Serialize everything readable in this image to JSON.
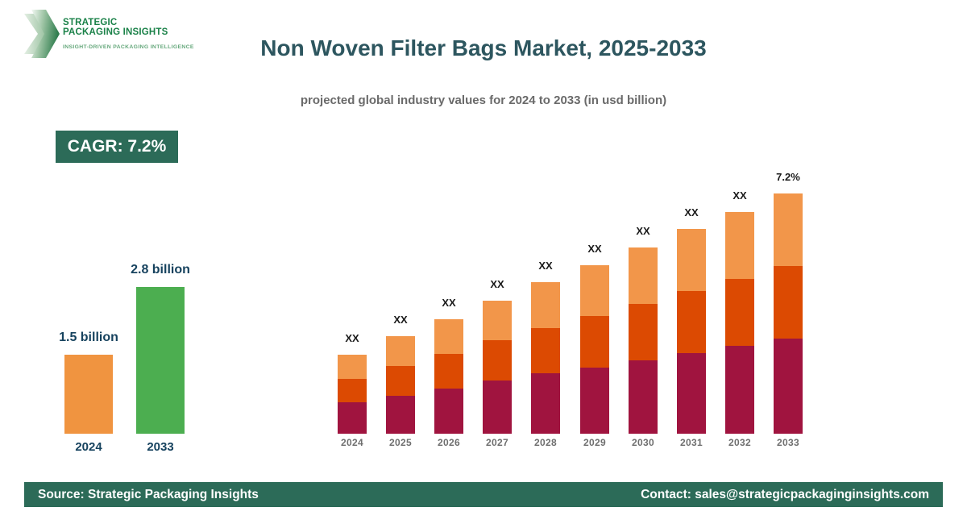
{
  "logo": {
    "line1": "STRATEGIC",
    "line2": "PACKAGING INSIGHTS",
    "tagline": "INSIGHT-DRIVEN PACKAGING INTELLIGENCE"
  },
  "header": {
    "title": "Non Woven Filter Bags Market, 2025-2033",
    "subtitle": "projected global industry values for 2024 to 2033 (in usd billion)"
  },
  "cagr_badge": {
    "label": "CAGR: 7.2%"
  },
  "footer": {
    "source": "Source: Strategic Packaging Insights",
    "contact": "Contact: sales@strategicpackaginginsights.com"
  },
  "colors": {
    "brand_green": "#2C6B58",
    "title_teal": "#2D565F",
    "logo_green": "#1A8148",
    "logo_tagline_green": "#66A87C",
    "mini_label_navy": "#16425E",
    "main_year_gray": "#6E6E6E"
  },
  "chart_data": [
    {
      "type": "bar",
      "title": "",
      "categories": [
        "2024",
        "2033"
      ],
      "values": [
        1.5,
        2.8
      ],
      "value_labels": [
        "1.5 billion",
        "2.8 billion"
      ],
      "unit": "usd billion",
      "bar_colors": [
        "#F09440",
        "#4CAE50"
      ],
      "grid": false,
      "legend": false
    },
    {
      "type": "bar",
      "stacked": true,
      "title": "Non Woven Filter Bags Market, 2025-2033",
      "categories": [
        "2024",
        "2025",
        "2026",
        "2027",
        "2028",
        "2029",
        "2030",
        "2031",
        "2032",
        "2033"
      ],
      "series": [
        {
          "name": "segment-bottom",
          "color": "#A0143F",
          "values": [
            39,
            47,
            56,
            66,
            75,
            82,
            91,
            100,
            109,
            118
          ]
        },
        {
          "name": "segment-middle",
          "color": "#DC4A02",
          "values": [
            29,
            37,
            43,
            50,
            56,
            64,
            70,
            77,
            83,
            90
          ]
        },
        {
          "name": "segment-top",
          "color": "#F2964A",
          "values": [
            30,
            37,
            43,
            49,
            57,
            63,
            70,
            77,
            83,
            90
          ]
        }
      ],
      "bar_total_labels": [
        "XX",
        "XX",
        "XX",
        "XX",
        "XX",
        "XX",
        "XX",
        "XX",
        "XX",
        "7.2%"
      ],
      "value_note": "actual figures masked as XX in source; series values are relative heights",
      "ylabel": "",
      "grid": false,
      "legend": false
    }
  ]
}
